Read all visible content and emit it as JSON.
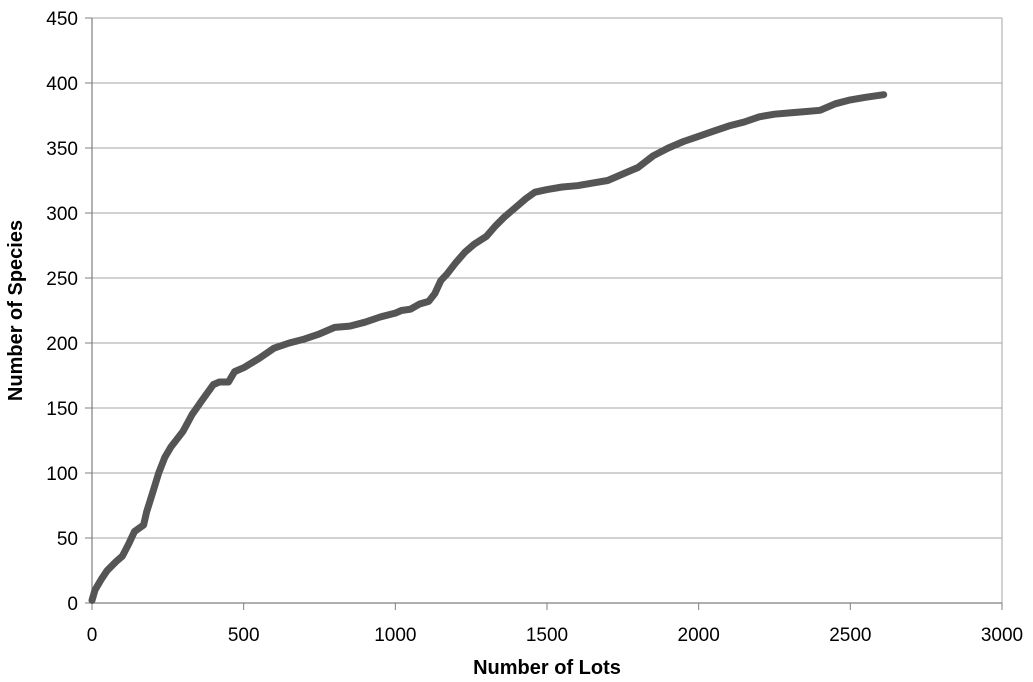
{
  "chart_data": {
    "type": "line",
    "title": "",
    "xlabel": "Number of Lots",
    "ylabel": "Number of Species",
    "xlim": [
      0,
      3000
    ],
    "ylim": [
      0,
      450
    ],
    "xticks": [
      "0",
      "500",
      "1000",
      "1500",
      "2000",
      "2500",
      "3000"
    ],
    "yticks": [
      "0",
      "50",
      "100",
      "150",
      "200",
      "250",
      "300",
      "350",
      "400",
      "450"
    ],
    "grid": "horizontal",
    "legend": "none",
    "series": [
      {
        "color": "#555555",
        "x": [
          0,
          10,
          30,
          50,
          80,
          100,
          120,
          140,
          170,
          180,
          200,
          220,
          240,
          260,
          300,
          330,
          360,
          400,
          420,
          450,
          470,
          500,
          550,
          600,
          650,
          700,
          750,
          800,
          850,
          900,
          950,
          1000,
          1020,
          1050,
          1080,
          1110,
          1130,
          1150,
          1170,
          1200,
          1230,
          1260,
          1300,
          1330,
          1360,
          1400,
          1430,
          1460,
          1500,
          1550,
          1600,
          1650,
          1700,
          1750,
          1800,
          1850,
          1900,
          1950,
          2000,
          2050,
          2100,
          2150,
          2200,
          2250,
          2300,
          2350,
          2400,
          2450,
          2500,
          2550,
          2610
        ],
        "y": [
          2,
          10,
          18,
          25,
          32,
          36,
          45,
          55,
          60,
          70,
          85,
          100,
          112,
          120,
          132,
          145,
          155,
          168,
          170,
          170,
          178,
          181,
          188,
          196,
          200,
          203,
          207,
          212,
          213,
          216,
          220,
          223,
          225,
          226,
          230,
          232,
          238,
          248,
          253,
          262,
          270,
          276,
          282,
          290,
          297,
          305,
          311,
          316,
          318,
          320,
          321,
          323,
          325,
          330,
          335,
          344,
          350,
          355,
          359,
          363,
          367,
          370,
          374,
          376,
          377,
          378,
          379,
          384,
          387,
          389,
          391
        ]
      }
    ]
  }
}
